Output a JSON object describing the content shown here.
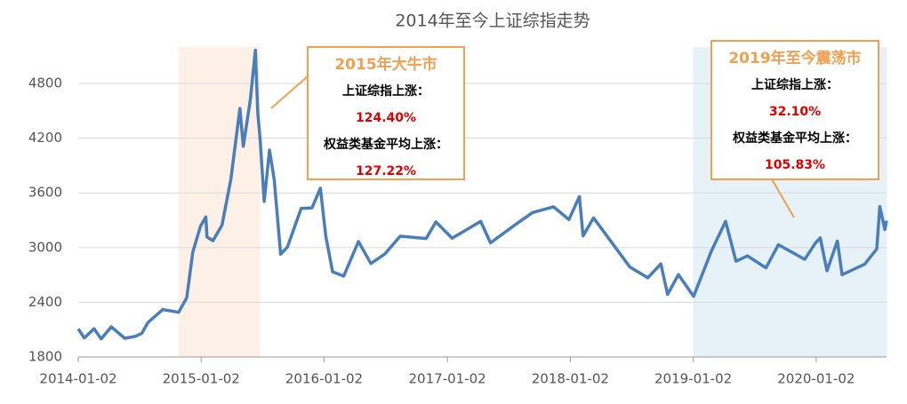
{
  "chart_data": {
    "type": "line",
    "title": "2014年至今上证综指走势",
    "x": [
      "2014-01-02",
      "2014-01-20",
      "2014-02-18",
      "2014-03-11",
      "2014-04-10",
      "2014-05-20",
      "2014-06-20",
      "2014-07-10",
      "2014-07-28",
      "2014-09-10",
      "2014-10-27",
      "2014-11-20",
      "2014-12-08",
      "2014-12-31",
      "2015-01-16",
      "2015-01-19",
      "2015-02-06",
      "2015-03-05",
      "2015-03-31",
      "2015-04-27",
      "2015-05-07",
      "2015-05-28",
      "2015-06-12",
      "2015-06-19",
      "2015-06-26",
      "2015-07-08",
      "2015-07-24",
      "2015-08-07",
      "2015-08-26",
      "2015-09-15",
      "2015-10-26",
      "2015-11-27",
      "2015-12-22",
      "2016-01-07",
      "2016-01-27",
      "2016-02-29",
      "2016-04-13",
      "2016-05-20",
      "2016-06-30",
      "2016-08-15",
      "2016-10-31",
      "2016-11-29",
      "2017-01-16",
      "2017-04-11",
      "2017-05-10",
      "2017-07-31",
      "2017-09-12",
      "2017-11-13",
      "2017-12-29",
      "2018-01-29",
      "2018-02-09",
      "2018-03-12",
      "2018-04-30",
      "2018-06-28",
      "2018-08-20",
      "2018-09-28",
      "2018-10-18",
      "2018-11-19",
      "2019-01-03",
      "2019-02-25",
      "2019-04-08",
      "2019-05-09",
      "2019-06-12",
      "2019-08-06",
      "2019-09-12",
      "2019-11-29",
      "2019-12-31",
      "2020-01-14",
      "2020-02-03",
      "2020-03-05",
      "2020-03-19",
      "2020-05-25",
      "2020-06-30",
      "2020-07-09",
      "2020-07-24",
      "2020-07-29"
    ],
    "series": [
      {
        "color": "#4a7ebb",
        "values": [
          2109,
          2008,
          2110,
          1998,
          2130,
          2005,
          2025,
          2060,
          2178,
          2320,
          2290,
          2450,
          2950,
          3235,
          3336,
          3116,
          3075,
          3248,
          3748,
          4527,
          4112,
          4620,
          5166,
          4478,
          4192,
          3507,
          4070,
          3744,
          2927,
          3005,
          3430,
          3436,
          3651,
          3125,
          2735,
          2687,
          3066,
          2825,
          2929,
          3125,
          3100,
          3282,
          3103,
          3288,
          3052,
          3273,
          3384,
          3447,
          3307,
          3559,
          3129,
          3326,
          3082,
          2786,
          2668,
          2821,
          2486,
          2703,
          2464,
          2961,
          3288,
          2850,
          2909,
          2777,
          3031,
          2871,
          3050,
          3106,
          2746,
          3071,
          2702,
          2817,
          2985,
          3450,
          3197,
          3294
        ]
      }
    ],
    "xlim": [
      "2014-01-02",
      "2020-07-29"
    ],
    "xticks": [
      "2014-01-02",
      "2015-01-02",
      "2016-01-02",
      "2017-01-02",
      "2018-01-02",
      "2019-01-02",
      "2020-01-02"
    ],
    "ylim": [
      1800,
      5200
    ],
    "yticks": [
      1800,
      2400,
      3000,
      3600,
      4200,
      4800
    ],
    "grid": true,
    "bands": [
      {
        "start": "2014-10-27",
        "end": "2015-06-26",
        "color": "#fdf0e6"
      },
      {
        "start": "2019-01-02",
        "end": "2020-07-29",
        "color": "#e6f2f8"
      }
    ],
    "annotations": [
      {
        "title": "2015年大牛市",
        "lines": [
          {
            "text": "上证综指上涨：",
            "color": "#000000"
          },
          {
            "text": "124.40%",
            "color": "#e00000"
          },
          {
            "text": "权益类基金平均上涨：",
            "color": "#000000"
          },
          {
            "text": "127.22%",
            "color": "#e00000"
          }
        ]
      },
      {
        "title": "2019年至今震荡市",
        "lines": [
          {
            "text": "上证综指上涨：",
            "color": "#000000"
          },
          {
            "text": "32.10%",
            "color": "#e00000"
          },
          {
            "text": "权益类基金平均上涨：",
            "color": "#000000"
          },
          {
            "text": "105.83%",
            "color": "#e00000"
          }
        ]
      }
    ]
  }
}
